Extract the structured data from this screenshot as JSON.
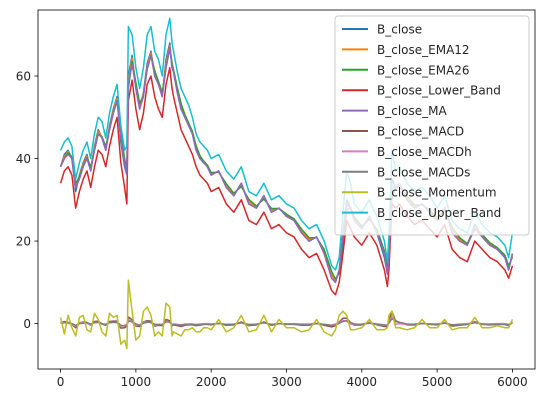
{
  "chart_data": {
    "type": "line",
    "title": "",
    "xlabel": "",
    "ylabel": "",
    "xlim": [
      -300,
      6300
    ],
    "ylim": [
      -11,
      76
    ],
    "x_ticks": [
      0,
      1000,
      2000,
      3000,
      4000,
      5000,
      6000
    ],
    "y_ticks": [
      0,
      20,
      40,
      60
    ],
    "grid": false,
    "legend": {
      "placement": "top-right"
    },
    "x": [
      0,
      50,
      100,
      150,
      200,
      250,
      300,
      350,
      400,
      450,
      500,
      550,
      600,
      650,
      700,
      750,
      800,
      850,
      880,
      900,
      950,
      1000,
      1050,
      1100,
      1150,
      1200,
      1250,
      1300,
      1350,
      1400,
      1450,
      1480,
      1500,
      1550,
      1600,
      1650,
      1700,
      1750,
      1800,
      1850,
      1900,
      1950,
      2000,
      2100,
      2200,
      2300,
      2400,
      2500,
      2600,
      2700,
      2800,
      2900,
      3000,
      3100,
      3200,
      3300,
      3400,
      3500,
      3600,
      3650,
      3700,
      3750,
      3800,
      3850,
      3900,
      4000,
      4100,
      4200,
      4300,
      4340,
      4360,
      4400,
      4450,
      4500,
      4600,
      4700,
      4800,
      4900,
      5000,
      5100,
      5200,
      5300,
      5400,
      5500,
      5600,
      5700,
      5800,
      5900,
      5950,
      6000
    ],
    "series": [
      {
        "name": "B_close",
        "color": "#1f77b4",
        "values": [
          38,
          41,
          42,
          40,
          32,
          36,
          39,
          41,
          37,
          43,
          47,
          45,
          42,
          48,
          52,
          55,
          44,
          38,
          36,
          60,
          65,
          57,
          52,
          56,
          63,
          66,
          60,
          58,
          55,
          64,
          68,
          62,
          61,
          56,
          52,
          50,
          48,
          46,
          42,
          40,
          39,
          38,
          36,
          37,
          33,
          31,
          34,
          29,
          28,
          31,
          27,
          28,
          26,
          25,
          22,
          20,
          21,
          17,
          11,
          10,
          13,
          22,
          30,
          28,
          25,
          23,
          26,
          22,
          16,
          12,
          17,
          35,
          33,
          34,
          30,
          28,
          29,
          27,
          25,
          28,
          22,
          20,
          19,
          24,
          21,
          19,
          18,
          16,
          13,
          17
        ]
      },
      {
        "name": "B_close_EMA12",
        "color": "#ff7f0e",
        "values": [
          38,
          40.5,
          41.7,
          40.2,
          33,
          35.8,
          38.7,
          40.6,
          37.5,
          42.5,
          46.6,
          45.2,
          42.5,
          47.5,
          51.6,
          54.6,
          45.4,
          39,
          36.6,
          58.6,
          64.4,
          57.8,
          52.7,
          55.6,
          62.3,
          65.6,
          60.7,
          58.3,
          55.5,
          63,
          67.4,
          62.7,
          61.2,
          56.7,
          52.6,
          50.3,
          48.3,
          46.3,
          42.6,
          40.3,
          39.2,
          38.2,
          36.3,
          36.8,
          33.5,
          31.3,
          33.6,
          29.6,
          28.2,
          30.6,
          27.5,
          27.9,
          26.3,
          25.2,
          22.5,
          20.4,
          20.9,
          17.6,
          11.8,
          10.3,
          12.6,
          20.9,
          28.9,
          28.3,
          25.5,
          23.3,
          25.6,
          22.6,
          16.9,
          12.7,
          16.3,
          32.6,
          33.3,
          33.8,
          30.6,
          28.4,
          28.9,
          27.3,
          25.4,
          27.6,
          22.8,
          20.4,
          19.2,
          23.4,
          21.4,
          19.3,
          18.2,
          16.4,
          13.5,
          16.5
        ]
      },
      {
        "name": "B_close_EMA26",
        "color": "#2ca02c",
        "values": [
          38,
          40,
          41.4,
          40.4,
          34,
          35.6,
          38.3,
          40.3,
          37.9,
          42,
          46,
          45.3,
          42.9,
          47,
          51,
          54,
          46.5,
          40,
          37.2,
          57,
          63.5,
          58.4,
          53.4,
          55.2,
          61.6,
          65,
          61.3,
          58.7,
          56,
          62,
          66.7,
          63.2,
          61.5,
          57.2,
          53.3,
          50.7,
          48.6,
          46.6,
          43.1,
          40.7,
          39.4,
          38.4,
          36.6,
          36.7,
          33.9,
          31.6,
          33.2,
          30.1,
          28.5,
          30.2,
          27.9,
          27.9,
          26.5,
          25.4,
          22.9,
          20.8,
          20.8,
          18,
          12.6,
          10.8,
          12.2,
          19.6,
          27.6,
          28.1,
          25.9,
          23.6,
          25.3,
          22.9,
          17.6,
          13.4,
          15.8,
          30.3,
          32.8,
          33.5,
          30.9,
          28.7,
          28.8,
          27.5,
          25.7,
          27.3,
          23.4,
          20.8,
          19.4,
          22.9,
          21.6,
          19.6,
          18.4,
          16.6,
          14,
          16.1
        ]
      },
      {
        "name": "B_close_Lower_Band",
        "color": "#d62728",
        "values": [
          34,
          37,
          38,
          36,
          28,
          32,
          35,
          37,
          33,
          38,
          42,
          41,
          38,
          43,
          47,
          50,
          39,
          33,
          29,
          54,
          59,
          52,
          47,
          51,
          58,
          60,
          55,
          52,
          50,
          58,
          62,
          57,
          55,
          51,
          47,
          45,
          43,
          41,
          38,
          36,
          35,
          34,
          32,
          33,
          29,
          27,
          30,
          25,
          24,
          27,
          23,
          24,
          22,
          21,
          18,
          16,
          17,
          13,
          8,
          7,
          10,
          17,
          25,
          23,
          21,
          19,
          22,
          19,
          13,
          9,
          13,
          29,
          28,
          29,
          26,
          24,
          25,
          23,
          21,
          24,
          18,
          16,
          15,
          20,
          18,
          16,
          15,
          13,
          11,
          14
        ]
      },
      {
        "name": "B_close_MA",
        "color": "#9467bd",
        "values": [
          38,
          40,
          41,
          40,
          33,
          35,
          38,
          40,
          37,
          42,
          46,
          45,
          42,
          47,
          51,
          54,
          45,
          39,
          36,
          58,
          63,
          57,
          52,
          55,
          62,
          65,
          60,
          58,
          55,
          62,
          67,
          62,
          61,
          56,
          52,
          50,
          48,
          46,
          42,
          40,
          39,
          38,
          36,
          37,
          33,
          31,
          34,
          29,
          28,
          31,
          27,
          28,
          26,
          25,
          22,
          20,
          21,
          17,
          11,
          10,
          13,
          21,
          29,
          28,
          25,
          23,
          26,
          22,
          17,
          12,
          16,
          33,
          33,
          34,
          30,
          28,
          29,
          27,
          25,
          28,
          22,
          20,
          19,
          23,
          21,
          19,
          18,
          16,
          13,
          17
        ]
      },
      {
        "name": "B_close_MACD",
        "color": "#8c564b",
        "values": [
          0.2,
          0.5,
          0.3,
          -0.2,
          -1,
          0.2,
          0.4,
          0.3,
          -0.4,
          0.5,
          0.6,
          -0.1,
          -0.4,
          0.5,
          0.6,
          0.6,
          -1.1,
          -1,
          -0.6,
          1.6,
          0.9,
          -0.6,
          -0.7,
          0.4,
          0.7,
          0.6,
          -0.6,
          -0.4,
          -0.5,
          1,
          0.7,
          -0.5,
          -0.3,
          -0.5,
          -0.7,
          -0.4,
          -0.3,
          -0.3,
          -0.5,
          -0.4,
          -0.2,
          -0.2,
          -0.3,
          0.1,
          -0.4,
          -0.3,
          0.4,
          -0.5,
          -0.3,
          0.4,
          -0.4,
          0,
          -0.2,
          -0.2,
          -0.4,
          -0.4,
          0.1,
          -0.4,
          -0.8,
          -0.5,
          0.4,
          1.3,
          1.3,
          0.2,
          -0.4,
          -0.3,
          0.3,
          -0.3,
          -0.7,
          -0.7,
          0.5,
          3,
          0.5,
          0.3,
          -0.3,
          -0.3,
          0.1,
          -0.2,
          -0.3,
          0.3,
          -0.6,
          -0.4,
          -0.2,
          0.5,
          -0.2,
          -0.3,
          -0.2,
          -0.2,
          -0.5,
          0.4
        ]
      },
      {
        "name": "B_close_MACDh",
        "color": "#e377c2",
        "values": [
          0.1,
          0.3,
          0.1,
          -0.2,
          -0.6,
          0.2,
          0.3,
          0.1,
          -0.3,
          0.3,
          0.3,
          -0.1,
          -0.2,
          0.3,
          0.3,
          0.2,
          -0.7,
          -0.4,
          -0.2,
          1,
          0.3,
          -0.5,
          -0.3,
          0.3,
          0.4,
          0.2,
          -0.4,
          -0.2,
          -0.2,
          0.6,
          0.3,
          -0.3,
          -0.1,
          -0.2,
          -0.3,
          -0.1,
          -0.1,
          -0.1,
          -0.2,
          -0.1,
          0,
          0,
          -0.1,
          0.1,
          -0.2,
          -0.1,
          0.2,
          -0.3,
          -0.1,
          0.2,
          -0.2,
          0,
          -0.1,
          0,
          -0.1,
          -0.1,
          0.1,
          -0.2,
          -0.4,
          -0.1,
          0.3,
          0.8,
          0.6,
          -0.1,
          -0.3,
          -0.1,
          0.2,
          -0.2,
          -0.4,
          -0.3,
          0.4,
          1.8,
          -0.2,
          0,
          -0.2,
          -0.1,
          0.1,
          -0.1,
          -0.1,
          0.2,
          -0.3,
          -0.1,
          0,
          0.3,
          -0.1,
          -0.1,
          0,
          0,
          -0.2,
          0.3
        ]
      },
      {
        "name": "B_close_MACDs",
        "color": "#7f7f7f",
        "values": [
          0.1,
          0.2,
          0.2,
          0,
          -0.4,
          0,
          0.1,
          0.2,
          -0.1,
          0.2,
          0.3,
          0,
          -0.2,
          0.2,
          0.3,
          0.4,
          -0.4,
          -0.6,
          -0.4,
          0.6,
          0.6,
          -0.1,
          -0.4,
          0.1,
          0.3,
          0.4,
          -0.2,
          -0.2,
          -0.3,
          0.4,
          0.4,
          -0.2,
          -0.2,
          -0.3,
          -0.4,
          -0.3,
          -0.2,
          -0.2,
          -0.3,
          -0.3,
          -0.2,
          -0.2,
          -0.2,
          0,
          -0.2,
          -0.2,
          0.2,
          -0.2,
          -0.2,
          0.2,
          -0.2,
          0,
          -0.1,
          -0.2,
          -0.3,
          -0.3,
          0,
          -0.2,
          -0.4,
          -0.4,
          0.1,
          0.5,
          0.7,
          0.3,
          -0.1,
          -0.2,
          0.1,
          -0.1,
          -0.3,
          -0.4,
          0.1,
          1.2,
          0.7,
          0.3,
          -0.1,
          -0.2,
          0,
          -0.1,
          -0.2,
          0.1,
          -0.3,
          -0.3,
          -0.2,
          0.2,
          -0.1,
          -0.2,
          -0.2,
          -0.2,
          -0.3,
          0.1
        ]
      },
      {
        "name": "B_close_Momentum",
        "color": "#bcbd22",
        "values": [
          1.5,
          -2.5,
          2,
          -1,
          -3,
          1.5,
          2,
          -1.5,
          -2,
          2.5,
          1,
          -2,
          -3,
          2.5,
          1.5,
          2,
          -5,
          -4,
          -6,
          10.5,
          3,
          -4,
          -3,
          3,
          4,
          2,
          -3,
          -2,
          -3,
          5,
          4,
          -3,
          -2,
          -2.5,
          -3,
          -1.5,
          -1.5,
          -1,
          -2,
          -2,
          -1,
          -1,
          -1.5,
          1,
          -2,
          -1,
          2,
          -2,
          -1.5,
          2,
          -2,
          1,
          -1,
          -1,
          -2,
          -1.5,
          1,
          -2,
          -3,
          -1.5,
          2,
          3,
          2,
          -1.5,
          -1.5,
          -1,
          1,
          -1.5,
          -1.5,
          -1,
          2,
          3,
          -1,
          -1,
          -1.5,
          -1,
          1,
          -1,
          -1,
          1,
          -1.5,
          -1,
          -1,
          1.5,
          -1,
          -1,
          -0.5,
          -1,
          -1,
          1
        ]
      },
      {
        "name": "B_close_Upper_Band",
        "color": "#17becf",
        "values": [
          42,
          44,
          45,
          43,
          35,
          39,
          42,
          44,
          40,
          46,
          50,
          49,
          45,
          51,
          55,
          58,
          48,
          42,
          43,
          72,
          70,
          62,
          57,
          62,
          70,
          72,
          66,
          64,
          60,
          70,
          74,
          68,
          66,
          61,
          57,
          55,
          53,
          50,
          46,
          44,
          43,
          42,
          40,
          41,
          37,
          35,
          38,
          32,
          31,
          34,
          30,
          31,
          29,
          28,
          25,
          23,
          24,
          20,
          14,
          13,
          16,
          27,
          37,
          34,
          29,
          27,
          30,
          26,
          20,
          15,
          21,
          42,
          37,
          38,
          34,
          32,
          33,
          31,
          28,
          31,
          25,
          23,
          22,
          27,
          24,
          22,
          21,
          19,
          16,
          22
        ]
      }
    ]
  }
}
